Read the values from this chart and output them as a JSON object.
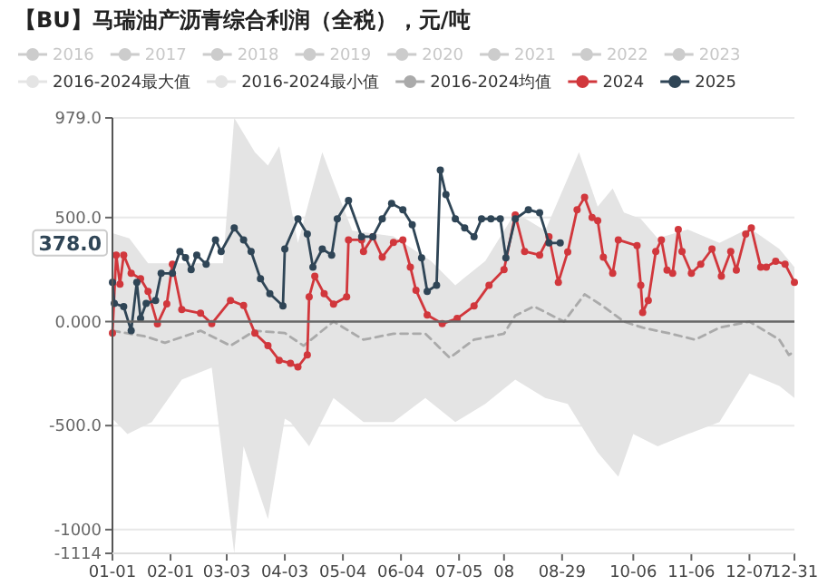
{
  "chart_data": {
    "type": "line",
    "title": "【BU】马瑞油产沥青综合利润（全税），元/吨",
    "xlim": [
      "--01-01",
      "--12-31"
    ],
    "xticks": [
      {
        "value": "--01-01",
        "label": "01-01"
      },
      {
        "value": "--02-01",
        "label": "02-01"
      },
      {
        "value": "--03-03",
        "label": "03-03"
      },
      {
        "value": "--04-03",
        "label": "04-03"
      },
      {
        "value": "--05-04",
        "label": "05-04"
      },
      {
        "value": "--06-04",
        "label": "06-04"
      },
      {
        "value": "--07-05",
        "label": "07-05"
      },
      {
        "value": "--07-29",
        "label": "08"
      },
      {
        "value": "--08-29",
        "label": "08-29"
      },
      {
        "value": "--10-06",
        "label": "10-06"
      },
      {
        "value": "--11-06",
        "label": "11-06"
      },
      {
        "value": "--12-07",
        "label": "12-07"
      },
      {
        "value": "--12-31",
        "label": "12-31"
      }
    ],
    "ylim": [
      -1114,
      979
    ],
    "yticks": [
      {
        "value": 979,
        "label": "979.0"
      },
      {
        "value": 500,
        "label": "500.0"
      },
      {
        "value": 0,
        "label": "0.000"
      },
      {
        "value": -500,
        "label": "-500.0"
      },
      -1000,
      -1114
    ],
    "grid": "y",
    "legend": "top",
    "ref_lines": [
      {
        "axis": "y",
        "value": 0,
        "color": "#666666"
      }
    ],
    "annotations": [
      {
        "text": "378.0",
        "y": 378
      }
    ],
    "series": [
      {
        "name": "2016",
        "color": "#cccccc"
      },
      {
        "name": "2017",
        "color": "#cccccc"
      },
      {
        "name": "2018",
        "color": "#cccccc"
      },
      {
        "name": "2019",
        "color": "#cccccc"
      },
      {
        "name": "2020",
        "color": "#cccccc"
      },
      {
        "name": "2021",
        "color": "#cccccc"
      },
      {
        "name": "2022",
        "color": "#cccccc"
      },
      {
        "name": "2023",
        "color": "#cccccc"
      },
      {
        "name": "2016-2024最大值",
        "type": "area",
        "color": "#e4e4e4",
        "marker": "none",
        "x": [
          "--01-01",
          "--01-10",
          "--01-20",
          "--03-01",
          "--03-07",
          "--03-18",
          "--03-25",
          "--03-31",
          "--04-10",
          "--04-16",
          "--04-23",
          "--04-29",
          "--05-09",
          "--05-31",
          "--06-20",
          "--07-03",
          "--07-19",
          "--08-04",
          "--08-20",
          "--09-07",
          "--09-17",
          "--09-25",
          "--10-01",
          "--10-10",
          "--10-19",
          "--11-04",
          "--11-21",
          "--12-07",
          "--12-23",
          "--12-31"
        ],
        "values": [
          425,
          400,
          280,
          280,
          979,
          814,
          750,
          843,
          378,
          582,
          814,
          669,
          437,
          410,
          291,
          175,
          291,
          524,
          437,
          814,
          553,
          640,
          524,
          494,
          400,
          443,
          378,
          450,
          349,
          262
        ]
      },
      {
        "name": "2016-2024最小值",
        "type": "area",
        "color": "#e4e4e4",
        "marker": "none",
        "x": [
          "--01-01",
          "--01-09",
          "--01-22",
          "--02-07",
          "--02-23",
          "--03-07",
          "--03-12",
          "--03-25",
          "--04-03",
          "--04-06",
          "--04-16",
          "--04-29",
          "--05-15",
          "--05-31",
          "--06-17",
          "--07-03",
          "--07-19",
          "--08-04",
          "--08-20",
          "--09-01",
          "--09-17",
          "--09-28",
          "--10-06",
          "--10-19",
          "--11-04",
          "--11-21",
          "--12-07",
          "--12-23",
          "--12-31"
        ],
        "values": [
          -466,
          -541,
          -483,
          -279,
          -221,
          -1114,
          -600,
          -949,
          -466,
          -483,
          -600,
          -367,
          -483,
          -483,
          -367,
          -483,
          -396,
          -279,
          -367,
          -396,
          -629,
          -745,
          -541,
          -600,
          -541,
          -483,
          -250,
          -309,
          -367
        ]
      },
      {
        "name": "2016-2024均值",
        "color": "#aaaaaa",
        "marker": "none",
        "line_style": "dashed",
        "x": [
          "--01-01",
          "--01-19",
          "--01-29",
          "--02-17",
          "--03-05",
          "--03-18",
          "--04-03",
          "--04-13",
          "--04-29",
          "--05-15",
          "--05-31",
          "--06-17",
          "--06-30",
          "--07-13",
          "--07-29",
          "--08-04",
          "--08-14",
          "--08-30",
          "--09-10",
          "--09-20",
          "--10-01",
          "--10-11",
          "--10-26",
          "--11-08",
          "--11-21",
          "--12-07",
          "--12-23",
          "--12-28",
          "--12-31"
        ],
        "values": [
          -44,
          -72,
          -102,
          -44,
          -116,
          -44,
          -55,
          -116,
          0,
          -87,
          -58,
          -58,
          -174,
          -87,
          -58,
          29,
          73,
          0,
          131,
          73,
          0,
          -29,
          -58,
          -87,
          -29,
          0,
          -87,
          -160,
          -145
        ]
      },
      {
        "name": "2024",
        "color": "#d1373c",
        "marker": "circle",
        "x": [
          "--01-01",
          "--01-03",
          "--01-05",
          "--01-07",
          "--01-11",
          "--01-16",
          "--01-20",
          "--01-25",
          "--01-30",
          "--02-02",
          "--02-07",
          "--02-17",
          "--02-23",
          "--03-05",
          "--03-12",
          "--03-18",
          "--03-25",
          "--03-31",
          "--04-06",
          "--04-10",
          "--04-15",
          "--04-16",
          "--04-19",
          "--04-24",
          "--04-29",
          "--05-06",
          "--05-07",
          "--05-14",
          "--05-15",
          "--05-20",
          "--05-25",
          "--05-31",
          "--06-05",
          "--06-09",
          "--06-12",
          "--06-18",
          "--06-26",
          "--07-04",
          "--07-13",
          "--07-21",
          "--07-29",
          "--08-04",
          "--08-09",
          "--08-17",
          "--08-22",
          "--08-27",
          "--09-01",
          "--09-06",
          "--09-10",
          "--09-14",
          "--09-17",
          "--09-20",
          "--09-25",
          "--09-28",
          "--10-08",
          "--10-10",
          "--10-11",
          "--10-14",
          "--10-18",
          "--10-21",
          "--10-24",
          "--10-27",
          "--10-30",
          "--11-01",
          "--11-06",
          "--11-11",
          "--11-17",
          "--11-22",
          "--11-27",
          "--11-30",
          "--12-05",
          "--12-08",
          "--12-13",
          "--12-16",
          "--12-21",
          "--12-26",
          "--12-31"
        ],
        "values": [
          -55,
          320,
          180,
          320,
          232,
          206,
          145,
          -11,
          85,
          276,
          58,
          40,
          -10,
          102,
          77,
          -55,
          -116,
          -186,
          -200,
          -218,
          -160,
          119,
          218,
          134,
          84,
          119,
          393,
          393,
          337,
          408,
          310,
          380,
          393,
          262,
          151,
          32,
          -10,
          15,
          75,
          175,
          250,
          512,
          337,
          320,
          408,
          189,
          335,
          538,
          597,
          500,
          485,
          310,
          232,
          393,
          365,
          175,
          44,
          102,
          337,
          393,
          248,
          232,
          443,
          337,
          232,
          276,
          349,
          218,
          337,
          248,
          421,
          450,
          262,
          262,
          290,
          276,
          189
        ]
      },
      {
        "name": "2025",
        "color": "#2f4556",
        "marker": "circle",
        "x": [
          "--01-01",
          "--01-02",
          "--01-07",
          "--01-11",
          "--01-14",
          "--01-16",
          "--01-19",
          "--01-24",
          "--01-27",
          "--02-02",
          "--02-06",
          "--02-09",
          "--02-12",
          "--02-15",
          "--02-20",
          "--02-25",
          "--02-28",
          "--03-07",
          "--03-12",
          "--03-16",
          "--03-21",
          "--03-26",
          "--04-02",
          "--04-03",
          "--04-10",
          "--04-15",
          "--04-18",
          "--04-23",
          "--04-28",
          "--05-01",
          "--05-07",
          "--05-14",
          "--05-20",
          "--05-25",
          "--05-30",
          "--06-05",
          "--06-10",
          "--06-15",
          "--06-18",
          "--06-23",
          "--06-25",
          "--06-28",
          "--07-03",
          "--07-08",
          "--07-13",
          "--07-17",
          "--07-22",
          "--07-27",
          "--07-30",
          "--08-04",
          "--08-11",
          "--08-17",
          "--08-22",
          "--08-28"
        ],
        "values": [
          189,
          87,
          72,
          -44,
          189,
          15,
          87,
          102,
          232,
          232,
          337,
          308,
          250,
          320,
          276,
          393,
          337,
          450,
          393,
          337,
          206,
          134,
          75,
          349,
          494,
          421,
          262,
          349,
          320,
          494,
          582,
          408,
          408,
          494,
          568,
          538,
          466,
          306,
          145,
          175,
          728,
          611,
          494,
          450,
          408,
          494,
          494,
          494,
          306,
          494,
          538,
          523,
          378,
          378
        ]
      }
    ]
  }
}
